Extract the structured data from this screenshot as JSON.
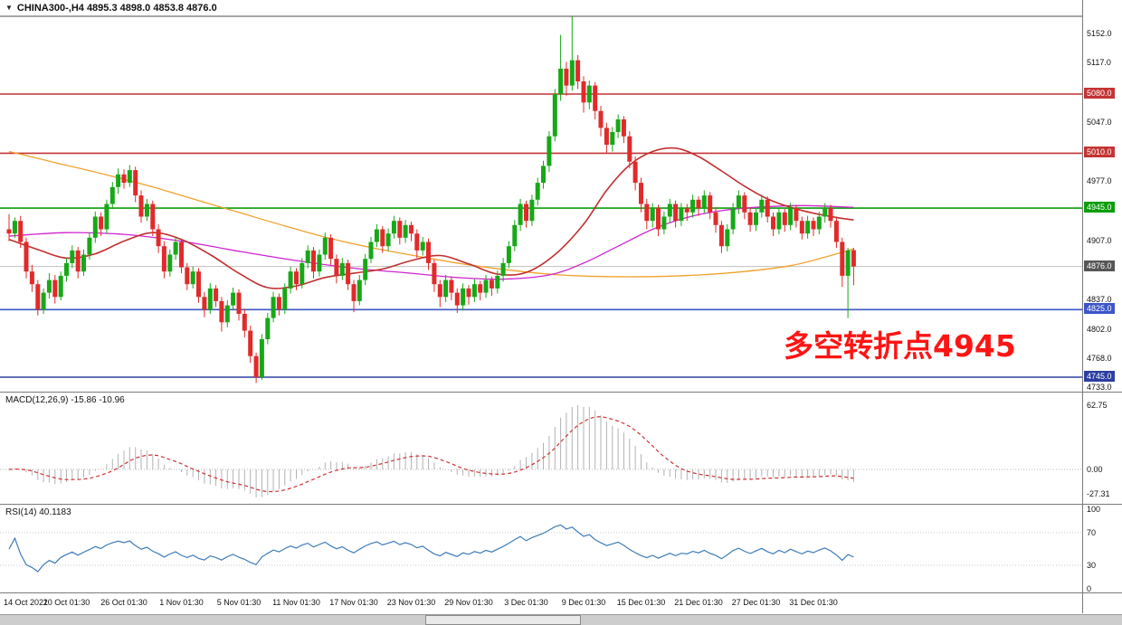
{
  "header": {
    "title": "CHINA300-,H4 4895.3 4898.0 4853.8 4876.0"
  },
  "annotation": {
    "text": "多空转折点4945",
    "color": "#ff1414"
  },
  "macd_panel": {
    "label": "MACD(12,26,9) -15.86 -10.96",
    "axis_labels": [
      "62.75",
      "0.00",
      "-27.31"
    ]
  },
  "rsi_panel": {
    "label": "RSI(14) 40.1183",
    "axis_labels": [
      "100",
      "70",
      "30",
      "0"
    ]
  },
  "colors": {
    "bull": "#17a817",
    "bear": "#e12a2a",
    "background": "#ffffff",
    "axis_text": "#111111",
    "current_price_line": "#bfbfbf"
  },
  "chart_data": {
    "type": "candlestick",
    "symbol": "CHINA300-",
    "timeframe": "H4",
    "current_bar": {
      "open": 4895.3,
      "high": 4898.0,
      "low": 4853.8,
      "close": 4876.0
    },
    "y_axis": {
      "visible_range": [
        4733,
        5152
      ],
      "plain_labels": [
        {
          "price": 5152,
          "text": "5152.0"
        },
        {
          "price": 5117,
          "text": "5117.0"
        },
        {
          "price": 5047,
          "text": "5047.0"
        },
        {
          "price": 4977,
          "text": "4977.0"
        },
        {
          "price": 4907,
          "text": "4907.0"
        },
        {
          "price": 4837,
          "text": "4837.0"
        },
        {
          "price": 4802,
          "text": "4802.0"
        },
        {
          "price": 4768,
          "text": "4768.0"
        },
        {
          "price": 4733,
          "text": "4733.0"
        }
      ]
    },
    "x_axis": {
      "labels": [
        {
          "idx": 0,
          "text": "14 Oct 2021"
        },
        {
          "idx": 10,
          "text": "20 Oct 01:30"
        },
        {
          "idx": 20,
          "text": "26 Oct 01:30"
        },
        {
          "idx": 30,
          "text": "1 Nov 01:30"
        },
        {
          "idx": 40,
          "text": "5 Nov 01:30"
        },
        {
          "idx": 50,
          "text": "11 Nov 01:30"
        },
        {
          "idx": 60,
          "text": "17 Nov 01:30"
        },
        {
          "idx": 70,
          "text": "23 Nov 01:30"
        },
        {
          "idx": 80,
          "text": "29 Nov 01:30"
        },
        {
          "idx": 90,
          "text": "3 Dec 01:30"
        },
        {
          "idx": 100,
          "text": "9 Dec 01:30"
        },
        {
          "idx": 110,
          "text": "15 Dec 01:30"
        },
        {
          "idx": 120,
          "text": "21 Dec 01:30"
        },
        {
          "idx": 130,
          "text": "27 Dec 01:30"
        },
        {
          "idx": 140,
          "text": "31 Dec 01:30"
        }
      ]
    },
    "horizontal_lines": [
      {
        "price": 5080.0,
        "text": "5080.0",
        "color": "#c43434",
        "kind": "resistance"
      },
      {
        "price": 5010.0,
        "text": "5010.0",
        "color": "#c43434",
        "kind": "resistance"
      },
      {
        "price": 4945.0,
        "text": "4945.0",
        "color": "#0a9e0a",
        "kind": "pivot"
      },
      {
        "price": 4825.0,
        "text": "4825.0",
        "color": "#3d55c8",
        "kind": "support"
      },
      {
        "price": 4745.0,
        "text": "4745.0",
        "color": "#2d3fa0",
        "kind": "support"
      }
    ],
    "current_price": {
      "price": 4876.0,
      "text": "4876.0",
      "color": "#565656"
    },
    "candles": [
      [
        4920,
        4938,
        4906,
        4915
      ],
      [
        4915,
        4934,
        4910,
        4930
      ],
      [
        4930,
        4936,
        4898,
        4905
      ],
      [
        4905,
        4910,
        4862,
        4870
      ],
      [
        4870,
        4878,
        4846,
        4855
      ],
      [
        4855,
        4860,
        4818,
        4825
      ],
      [
        4825,
        4850,
        4820,
        4845
      ],
      [
        4845,
        4868,
        4838,
        4860
      ],
      [
        4860,
        4866,
        4832,
        4840
      ],
      [
        4840,
        4870,
        4836,
        4865
      ],
      [
        4865,
        4886,
        4858,
        4880
      ],
      [
        4880,
        4901,
        4874,
        4895
      ],
      [
        4895,
        4899,
        4862,
        4870
      ],
      [
        4870,
        4896,
        4865,
        4890
      ],
      [
        4890,
        4916,
        4884,
        4910
      ],
      [
        4910,
        4941,
        4904,
        4935
      ],
      [
        4935,
        4940,
        4912,
        4920
      ],
      [
        4920,
        4955,
        4915,
        4950
      ],
      [
        4950,
        4976,
        4944,
        4970
      ],
      [
        4970,
        4992,
        4962,
        4985
      ],
      [
        4985,
        4991,
        4968,
        4975
      ],
      [
        4975,
        4996,
        4970,
        4990
      ],
      [
        4990,
        4994,
        4952,
        4960
      ],
      [
        4960,
        4966,
        4928,
        4935
      ],
      [
        4935,
        4956,
        4930,
        4950
      ],
      [
        4950,
        4954,
        4912,
        4920
      ],
      [
        4920,
        4926,
        4892,
        4900
      ],
      [
        4900,
        4906,
        4862,
        4870
      ],
      [
        4870,
        4896,
        4864,
        4890
      ],
      [
        4890,
        4911,
        4884,
        4905
      ],
      [
        4905,
        4909,
        4868,
        4875
      ],
      [
        4875,
        4880,
        4848,
        4855
      ],
      [
        4855,
        4876,
        4850,
        4870
      ],
      [
        4870,
        4874,
        4833,
        4840
      ],
      [
        4840,
        4846,
        4816,
        4825
      ],
      [
        4825,
        4856,
        4820,
        4850
      ],
      [
        4850,
        4854,
        4828,
        4835
      ],
      [
        4835,
        4840,
        4799,
        4810
      ],
      [
        4810,
        4836,
        4804,
        4830
      ],
      [
        4830,
        4851,
        4824,
        4845
      ],
      [
        4845,
        4849,
        4812,
        4820
      ],
      [
        4820,
        4826,
        4792,
        4800
      ],
      [
        4800,
        4806,
        4762,
        4770
      ],
      [
        4770,
        4774,
        4738,
        4745
      ],
      [
        4745,
        4796,
        4742,
        4790
      ],
      [
        4790,
        4821,
        4784,
        4815
      ],
      [
        4815,
        4846,
        4810,
        4840
      ],
      [
        4840,
        4844,
        4818,
        4825
      ],
      [
        4825,
        4856,
        4820,
        4850
      ],
      [
        4850,
        4876,
        4844,
        4870
      ],
      [
        4870,
        4874,
        4848,
        4855
      ],
      [
        4855,
        4886,
        4850,
        4880
      ],
      [
        4880,
        4901,
        4874,
        4895
      ],
      [
        4895,
        4899,
        4862,
        4870
      ],
      [
        4870,
        4896,
        4864,
        4890
      ],
      [
        4890,
        4916,
        4884,
        4910
      ],
      [
        4910,
        4914,
        4878,
        4885
      ],
      [
        4885,
        4890,
        4856,
        4865
      ],
      [
        4865,
        4886,
        4860,
        4880
      ],
      [
        4880,
        4884,
        4848,
        4855
      ],
      [
        4855,
        4860,
        4822,
        4835
      ],
      [
        4835,
        4866,
        4830,
        4860
      ],
      [
        4860,
        4891,
        4854,
        4885
      ],
      [
        4885,
        4911,
        4880,
        4905
      ],
      [
        4905,
        4926,
        4899,
        4920
      ],
      [
        4920,
        4924,
        4892,
        4900
      ],
      [
        4900,
        4921,
        4894,
        4915
      ],
      [
        4915,
        4936,
        4909,
        4930
      ],
      [
        4930,
        4934,
        4902,
        4910
      ],
      [
        4910,
        4931,
        4904,
        4925
      ],
      [
        4925,
        4929,
        4906,
        4915
      ],
      [
        4915,
        4920,
        4886,
        4895
      ],
      [
        4895,
        4911,
        4889,
        4905
      ],
      [
        4905,
        4909,
        4872,
        4880
      ],
      [
        4880,
        4884,
        4846,
        4855
      ],
      [
        4855,
        4860,
        4828,
        4840
      ],
      [
        4840,
        4866,
        4834,
        4860
      ],
      [
        4860,
        4864,
        4836,
        4845
      ],
      [
        4845,
        4850,
        4821,
        4830
      ],
      [
        4830,
        4856,
        4824,
        4850
      ],
      [
        4850,
        4854,
        4831,
        4840
      ],
      [
        4840,
        4861,
        4834,
        4855
      ],
      [
        4855,
        4859,
        4836,
        4845
      ],
      [
        4845,
        4866,
        4839,
        4860
      ],
      [
        4860,
        4864,
        4841,
        4850
      ],
      [
        4850,
        4871,
        4844,
        4865
      ],
      [
        4865,
        4886,
        4858,
        4880
      ],
      [
        4880,
        4906,
        4874,
        4900
      ],
      [
        4900,
        4931,
        4894,
        4925
      ],
      [
        4925,
        4956,
        4918,
        4950
      ],
      [
        4950,
        4954,
        4922,
        4930
      ],
      [
        4930,
        4961,
        4924,
        4955
      ],
      [
        4955,
        4981,
        4948,
        4975
      ],
      [
        4975,
        5001,
        4968,
        4995
      ],
      [
        4995,
        5036,
        4988,
        5030
      ],
      [
        5030,
        5086,
        5024,
        5080
      ],
      [
        5080,
        5150,
        5072,
        5110
      ],
      [
        5110,
        5118,
        5078,
        5090
      ],
      [
        5090,
        5172,
        5084,
        5120
      ],
      [
        5120,
        5126,
        5086,
        5095
      ],
      [
        5095,
        5101,
        5058,
        5070
      ],
      [
        5070,
        5096,
        5062,
        5090
      ],
      [
        5090,
        5094,
        5050,
        5060
      ],
      [
        5060,
        5066,
        5030,
        5040
      ],
      [
        5040,
        5046,
        5010,
        5020
      ],
      [
        5020,
        5041,
        5012,
        5035
      ],
      [
        5035,
        5056,
        5028,
        5050
      ],
      [
        5050,
        5054,
        5022,
        5030
      ],
      [
        5030,
        5036,
        4992,
        5000
      ],
      [
        5000,
        5006,
        4966,
        4975
      ],
      [
        4975,
        4981,
        4940,
        4950
      ],
      [
        4950,
        4956,
        4920,
        4930
      ],
      [
        4930,
        4951,
        4922,
        4945
      ],
      [
        4945,
        4949,
        4912,
        4920
      ],
      [
        4920,
        4941,
        4914,
        4935
      ],
      [
        4935,
        4956,
        4928,
        4950
      ],
      [
        4950,
        4954,
        4922,
        4930
      ],
      [
        4930,
        4951,
        4924,
        4945
      ],
      [
        4945,
        4950,
        4930,
        4940
      ],
      [
        4940,
        4961,
        4934,
        4955
      ],
      [
        4955,
        4959,
        4936,
        4945
      ],
      [
        4945,
        4966,
        4939,
        4960
      ],
      [
        4960,
        4964,
        4932,
        4940
      ],
      [
        4940,
        4946,
        4916,
        4925
      ],
      [
        4925,
        4930,
        4892,
        4900
      ],
      [
        4900,
        4926,
        4894,
        4920
      ],
      [
        4920,
        4951,
        4914,
        4945
      ],
      [
        4945,
        4966,
        4938,
        4960
      ],
      [
        4960,
        4964,
        4932,
        4940
      ],
      [
        4940,
        4946,
        4917,
        4925
      ],
      [
        4925,
        4946,
        4918,
        4940
      ],
      [
        4940,
        4961,
        4934,
        4955
      ],
      [
        4955,
        4959,
        4928,
        4935
      ],
      [
        4935,
        4940,
        4912,
        4920
      ],
      [
        4920,
        4946,
        4914,
        4940
      ],
      [
        4940,
        4944,
        4917,
        4925
      ],
      [
        4925,
        4951,
        4919,
        4945
      ],
      [
        4945,
        4949,
        4922,
        4930
      ],
      [
        4930,
        4935,
        4908,
        4915
      ],
      [
        4915,
        4936,
        4909,
        4930
      ],
      [
        4930,
        4934,
        4912,
        4920
      ],
      [
        4920,
        4941,
        4914,
        4935
      ],
      [
        4935,
        4951,
        4928,
        4945
      ],
      [
        4945,
        4949,
        4922,
        4930
      ],
      [
        4930,
        4935,
        4898,
        4905
      ],
      [
        4905,
        4910,
        4852,
        4865
      ],
      [
        4865,
        4898,
        4815,
        4895
      ],
      [
        4895.3,
        4898.0,
        4853.8,
        4876.0
      ]
    ],
    "ma_lines": [
      {
        "name": "ma-slow-orange",
        "color": "#efa22b",
        "width": 1.3,
        "points": [
          [
            0,
            5012
          ],
          [
            8,
            4999
          ],
          [
            16,
            4986
          ],
          [
            24,
            4972
          ],
          [
            32,
            4956
          ],
          [
            40,
            4940
          ],
          [
            48,
            4924
          ],
          [
            56,
            4909
          ],
          [
            64,
            4897
          ],
          [
            72,
            4887
          ],
          [
            80,
            4878
          ],
          [
            88,
            4871
          ],
          [
            96,
            4866
          ],
          [
            104,
            4864
          ],
          [
            112,
            4864
          ],
          [
            120,
            4866
          ],
          [
            128,
            4870
          ],
          [
            136,
            4877
          ],
          [
            142,
            4887
          ],
          [
            147,
            4897
          ]
        ]
      },
      {
        "name": "ma-mid-magenta",
        "color": "#cf25cf",
        "width": 1.3,
        "points": [
          [
            0,
            4912
          ],
          [
            10,
            4916
          ],
          [
            20,
            4914
          ],
          [
            30,
            4906
          ],
          [
            40,
            4894
          ],
          [
            50,
            4883
          ],
          [
            60,
            4874
          ],
          [
            70,
            4868
          ],
          [
            78,
            4863
          ],
          [
            86,
            4861
          ],
          [
            94,
            4866
          ],
          [
            100,
            4880
          ],
          [
            106,
            4900
          ],
          [
            112,
            4920
          ],
          [
            118,
            4934
          ],
          [
            124,
            4942
          ],
          [
            130,
            4946
          ],
          [
            138,
            4948
          ],
          [
            147,
            4946
          ]
        ]
      },
      {
        "name": "ma-smooth-red",
        "color": "#c03030",
        "width": 1.6,
        "points": [
          [
            0,
            4908
          ],
          [
            5,
            4896
          ],
          [
            10,
            4886
          ],
          [
            15,
            4891
          ],
          [
            20,
            4906
          ],
          [
            25,
            4916
          ],
          [
            30,
            4908
          ],
          [
            35,
            4890
          ],
          [
            40,
            4868
          ],
          [
            45,
            4851
          ],
          [
            50,
            4853
          ],
          [
            55,
            4863
          ],
          [
            60,
            4868
          ],
          [
            65,
            4873
          ],
          [
            70,
            4883
          ],
          [
            75,
            4889
          ],
          [
            80,
            4879
          ],
          [
            85,
            4867
          ],
          [
            90,
            4869
          ],
          [
            95,
            4890
          ],
          [
            100,
            4926
          ],
          [
            104,
            4966
          ],
          [
            108,
            4996
          ],
          [
            112,
            5012
          ],
          [
            116,
            5016
          ],
          [
            120,
            5006
          ],
          [
            124,
            4989
          ],
          [
            128,
            4971
          ],
          [
            132,
            4956
          ],
          [
            136,
            4946
          ],
          [
            140,
            4939
          ],
          [
            144,
            4934
          ],
          [
            147,
            4931
          ]
        ]
      }
    ],
    "indicators": {
      "macd": {
        "params": [
          12,
          26,
          9
        ],
        "current_values": [
          -15.86,
          -10.96
        ],
        "axis_range": [
          -27.31,
          62.75
        ],
        "histogram_color": "#b2b2b2",
        "signal_color": "#cc3232",
        "signal_style": "dashed"
      },
      "rsi": {
        "period": 14,
        "current_value": 40.1183,
        "axis_range": [
          0,
          100
        ],
        "levels": [
          30,
          70
        ],
        "line_color": "#3e7cb8"
      }
    }
  }
}
